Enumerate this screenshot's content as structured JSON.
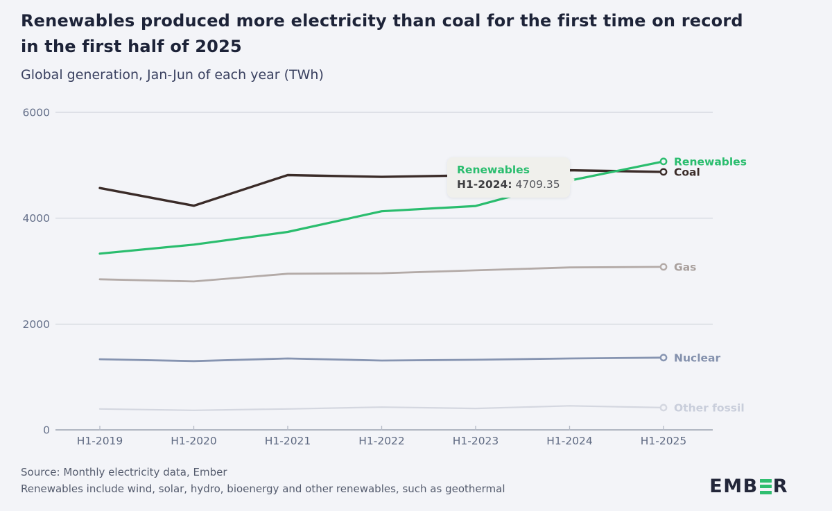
{
  "header": {
    "title_line1": "Renewables produced more electricity than coal for the first time on record",
    "title_line2": "in the first half of 2025",
    "subtitle": "Global generation, Jan-Jun of each year (TWh)"
  },
  "chart_data": {
    "type": "line",
    "title": "Renewables produced more electricity than coal for the first time on record in the first half of 2025",
    "subtitle": "Global generation, Jan-Jun of each year (TWh)",
    "xlabel": "",
    "ylabel": "TWh",
    "categories": [
      "H1-2019",
      "H1-2020",
      "H1-2021",
      "H1-2022",
      "H1-2023",
      "H1-2024",
      "H1-2025"
    ],
    "series": [
      {
        "name": "Renewables",
        "color": "#2abd6e",
        "label_color": "#2abd6e",
        "width": 3.2,
        "values": [
          3330,
          3500,
          3740,
          4130,
          4230,
          4709.35,
          5072
        ]
      },
      {
        "name": "Coal",
        "color": "#3a2b28",
        "label_color": "#3a2b28",
        "width": 3.4,
        "values": [
          4570,
          4235,
          4815,
          4780,
          4810,
          4905,
          4875
        ]
      },
      {
        "name": "Gas",
        "color": "#b3aaa7",
        "label_color": "#a9a09d",
        "width": 2.8,
        "values": [
          2845,
          2805,
          2950,
          2960,
          3015,
          3070,
          3080
        ]
      },
      {
        "name": "Nuclear",
        "color": "#8694b1",
        "label_color": "#8491ad",
        "width": 2.8,
        "values": [
          1335,
          1300,
          1350,
          1310,
          1325,
          1350,
          1365
        ]
      },
      {
        "name": "Other fossil",
        "color": "#d4d7e0",
        "label_color": "#c9cedb",
        "width": 2.2,
        "values": [
          395,
          370,
          395,
          430,
          405,
          455,
          420
        ]
      }
    ],
    "yticks": [
      0,
      2000,
      4000,
      6000
    ],
    "ylim": [
      0,
      6000
    ],
    "grid": "horizontal",
    "legend_position": "right-end-labels",
    "background_color": "#f3f4f8"
  },
  "tooltip": {
    "series": "Renewables",
    "label": "H1-2024:",
    "value": "4709.35"
  },
  "footer": {
    "source": "Source: Monthly electricity data, Ember",
    "note": "Renewables include wind, solar, hydro, bioenergy and other renewables, such as geothermal",
    "logo": {
      "part1": "EMB",
      "part2": "R"
    }
  }
}
